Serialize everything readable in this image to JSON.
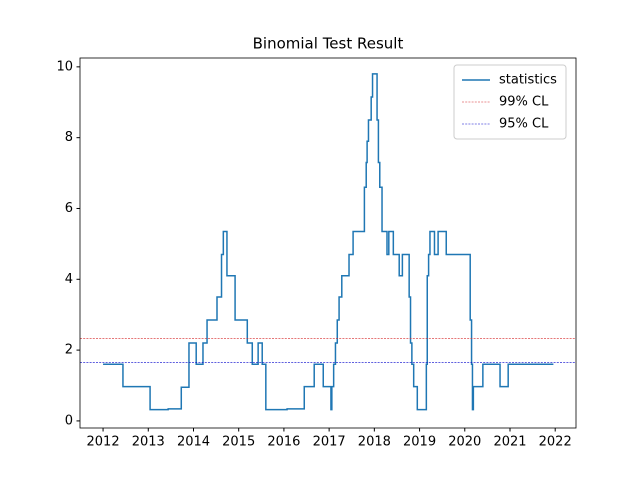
{
  "chart_data": {
    "type": "line",
    "title": "Binomial Test Result",
    "x": [
      2012.0,
      2012.44,
      2012.44,
      2013.04,
      2013.04,
      2013.44,
      2013.44,
      2013.73,
      2013.73,
      2013.9,
      2013.9,
      2014.06,
      2014.06,
      2014.21,
      2014.21,
      2014.3,
      2014.3,
      2014.52,
      2014.52,
      2014.62,
      2014.62,
      2014.66,
      2014.66,
      2014.74,
      2014.74,
      2014.92,
      2014.92,
      2015.19,
      2015.19,
      2015.3,
      2015.3,
      2015.43,
      2015.43,
      2015.52,
      2015.52,
      2015.6,
      2015.6,
      2016.07,
      2016.07,
      2016.45,
      2016.45,
      2016.67,
      2016.67,
      2016.87,
      2016.87,
      2017.04,
      2017.04,
      2017.06,
      2017.06,
      2017.1,
      2017.1,
      2017.14,
      2017.14,
      2017.18,
      2017.18,
      2017.22,
      2017.22,
      2017.28,
      2017.28,
      2017.44,
      2017.44,
      2017.53,
      2017.53,
      2017.78,
      2017.78,
      2017.82,
      2017.82,
      2017.84,
      2017.84,
      2017.87,
      2017.87,
      2017.93,
      2017.93,
      2017.96,
      2017.96,
      2018.06,
      2018.06,
      2018.09,
      2018.09,
      2018.12,
      2018.12,
      2018.17,
      2018.17,
      2018.28,
      2018.28,
      2018.32,
      2018.32,
      2018.42,
      2018.42,
      2018.55,
      2018.55,
      2018.62,
      2018.62,
      2018.77,
      2018.77,
      2018.8,
      2018.8,
      2018.83,
      2018.83,
      2018.87,
      2018.87,
      2018.95,
      2018.95,
      2019.15,
      2019.15,
      2019.17,
      2019.17,
      2019.2,
      2019.2,
      2019.23,
      2019.23,
      2019.33,
      2019.33,
      2019.41,
      2019.41,
      2019.59,
      2019.59,
      2020.12,
      2020.12,
      2020.15,
      2020.15,
      2020.17,
      2020.17,
      2020.19,
      2020.19,
      2020.4,
      2020.4,
      2020.78,
      2020.78,
      2020.96,
      2020.96,
      2021.96
    ],
    "series": [
      {
        "name": "statistics",
        "color": "#1f77b4",
        "values": [
          1.6,
          1.6,
          0.97,
          0.97,
          0.32,
          0.32,
          0.34,
          0.34,
          0.95,
          0.95,
          2.2,
          2.2,
          1.6,
          1.6,
          2.2,
          2.2,
          2.85,
          2.85,
          3.5,
          3.5,
          4.7,
          4.7,
          5.35,
          5.35,
          4.1,
          4.1,
          2.85,
          2.85,
          2.2,
          2.2,
          1.6,
          1.6,
          2.2,
          2.2,
          1.6,
          1.6,
          0.32,
          0.32,
          0.34,
          0.34,
          0.97,
          0.97,
          1.6,
          1.6,
          0.97,
          0.97,
          0.32,
          0.32,
          0.97,
          0.97,
          1.6,
          1.6,
          2.2,
          2.2,
          2.85,
          2.85,
          3.5,
          3.5,
          4.1,
          4.1,
          4.7,
          4.7,
          5.35,
          5.35,
          6.6,
          6.6,
          7.3,
          7.3,
          7.9,
          7.9,
          8.5,
          8.5,
          9.15,
          9.15,
          9.8,
          9.8,
          8.5,
          8.5,
          7.3,
          7.3,
          6.6,
          6.6,
          5.35,
          5.35,
          4.7,
          4.7,
          5.35,
          5.35,
          4.7,
          4.7,
          4.1,
          4.1,
          4.7,
          4.7,
          3.5,
          3.5,
          2.2,
          2.2,
          1.6,
          1.6,
          0.97,
          0.97,
          0.32,
          0.32,
          1.6,
          1.6,
          4.1,
          4.1,
          4.7,
          4.7,
          5.35,
          5.35,
          4.7,
          4.7,
          5.35,
          5.35,
          4.7,
          4.7,
          2.85,
          2.85,
          1.6,
          1.6,
          0.32,
          0.32,
          0.97,
          0.97,
          1.6,
          1.6,
          0.97,
          0.97,
          1.6,
          1.6
        ]
      }
    ],
    "reference_lines": [
      {
        "name": "99% CL",
        "value": 2.33,
        "color": "#d62728"
      },
      {
        "name": "95% CL",
        "value": 1.645,
        "color": "#0000cc"
      }
    ],
    "xlim": [
      2011.49,
      2022.46
    ],
    "xticks": [
      2012,
      2013,
      2014,
      2015,
      2016,
      2017,
      2018,
      2019,
      2020,
      2021,
      2022
    ],
    "ylim": [
      -0.2,
      10.25
    ],
    "yticks": [
      0,
      2,
      4,
      6,
      8,
      10
    ],
    "grid": false,
    "legend": "upper right"
  }
}
